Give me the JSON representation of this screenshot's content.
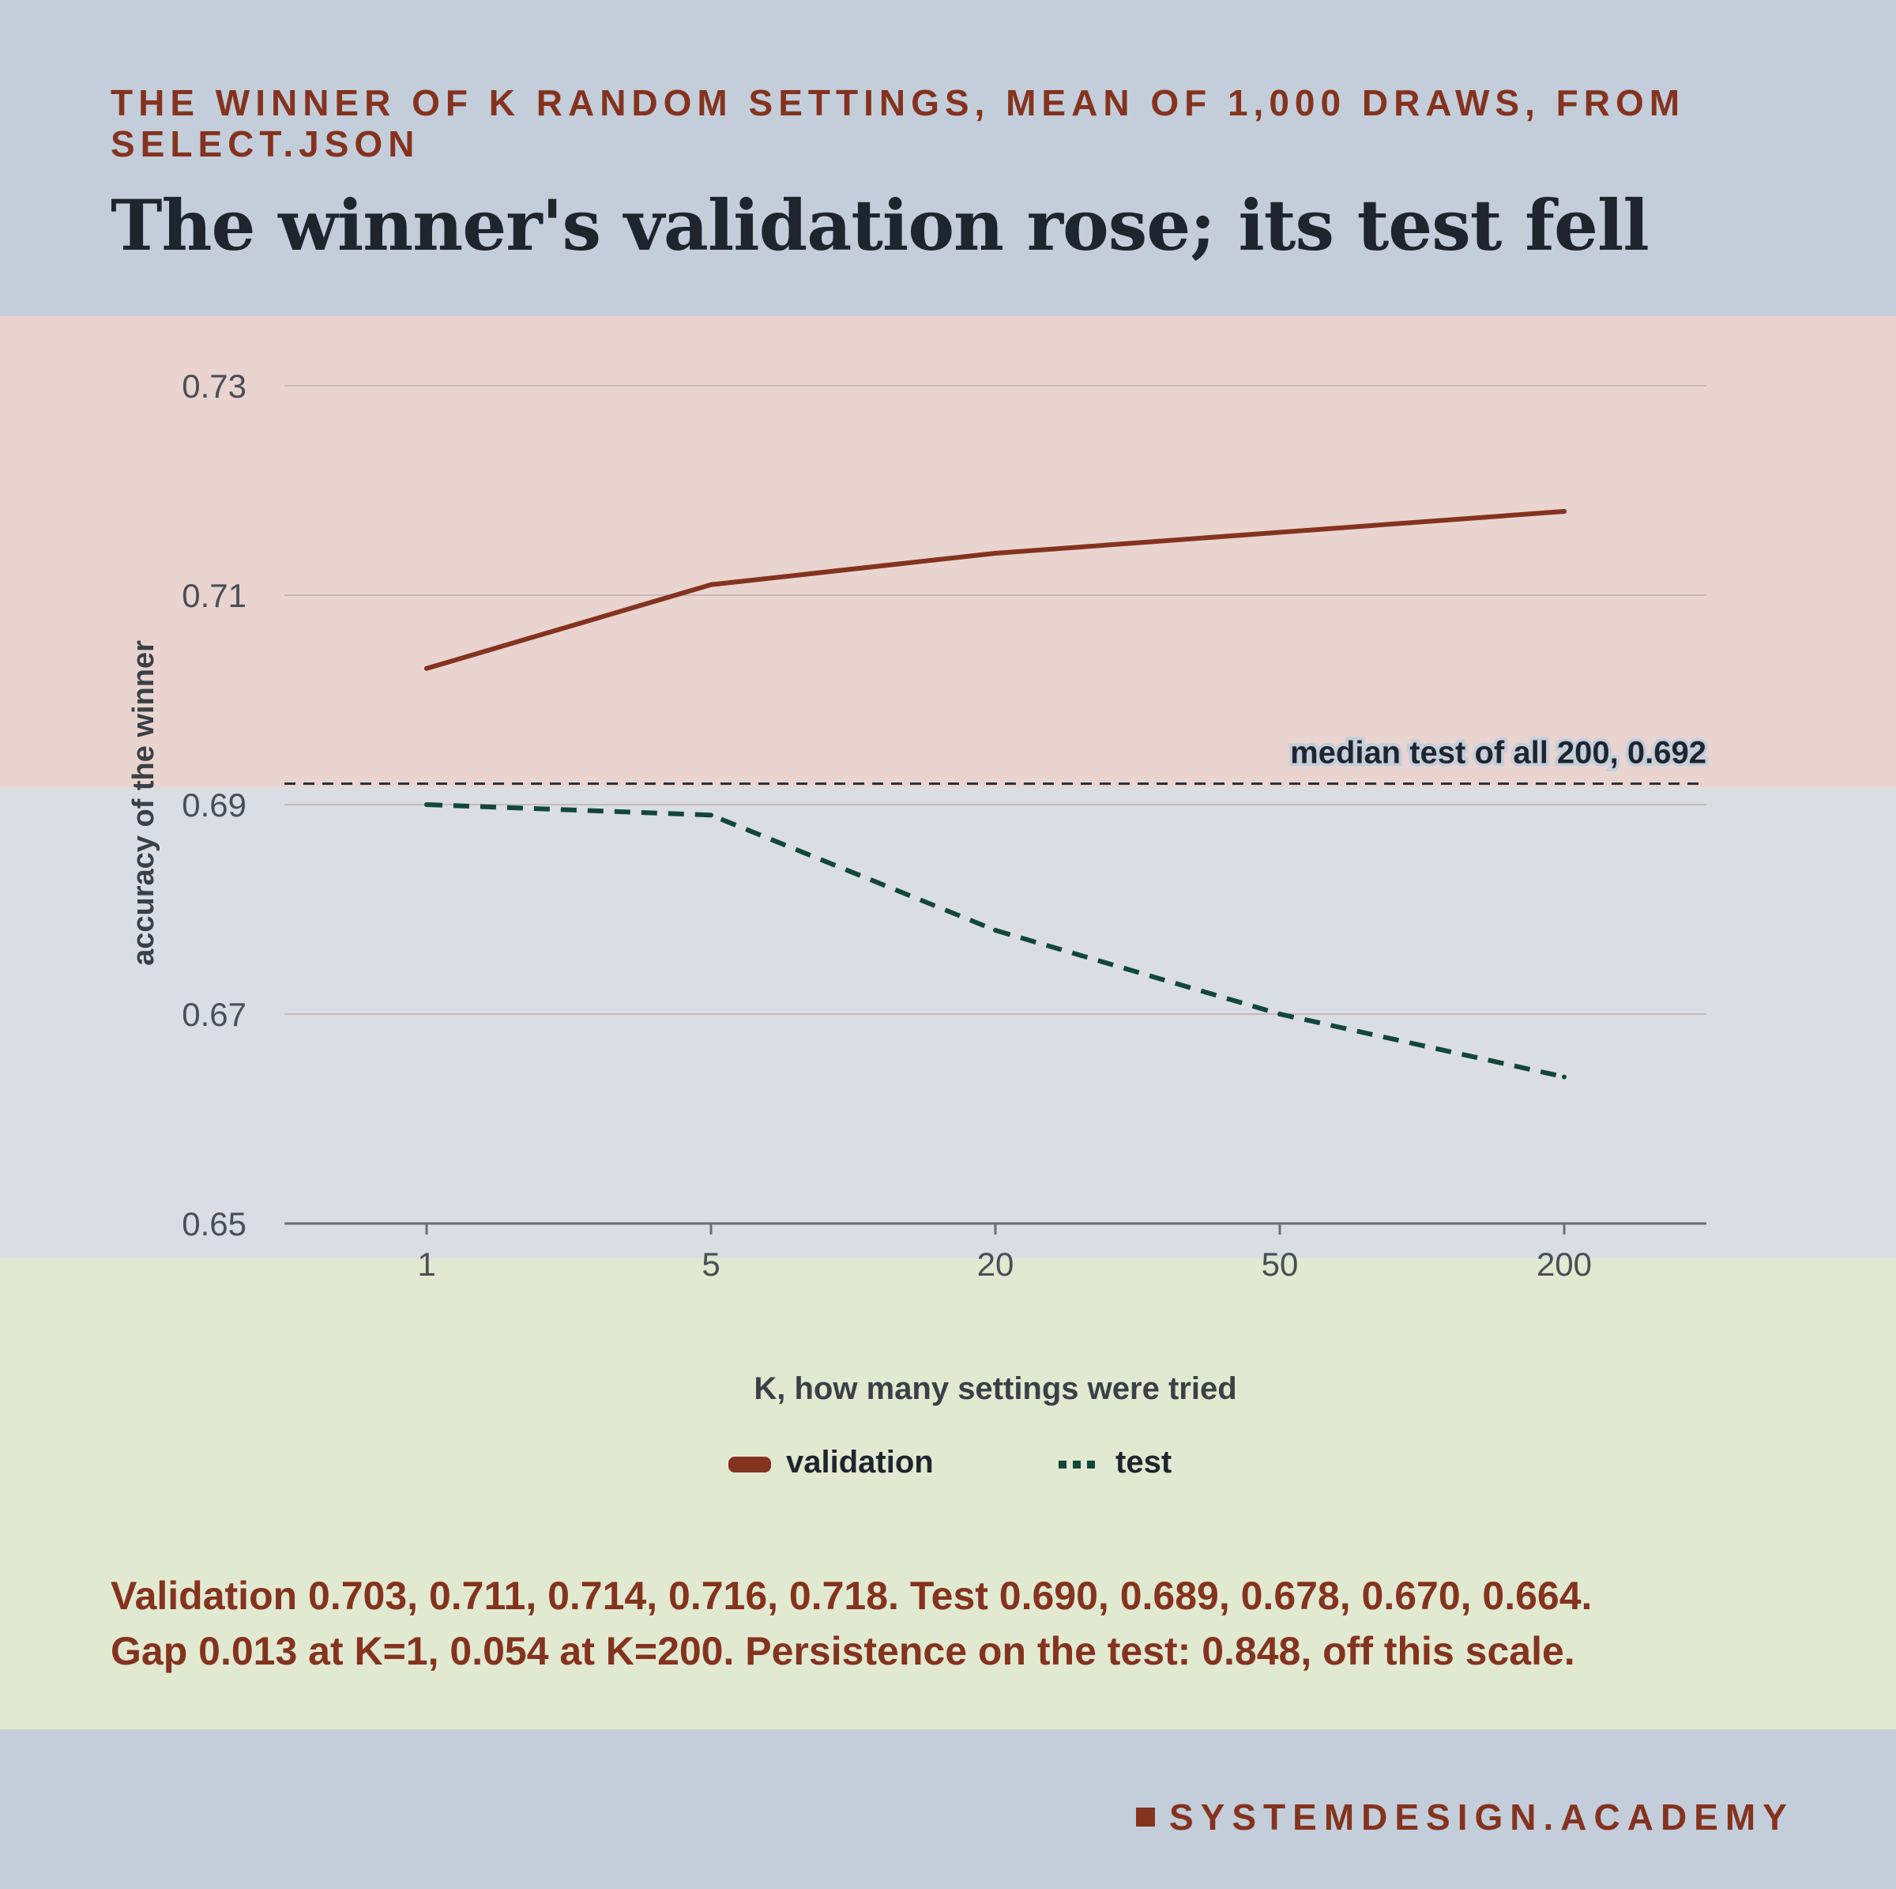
{
  "kicker": "THE WINNER OF K RANDOM SETTINGS, MEAN OF 1,000 DRAWS, FROM SELECT.JSON",
  "title": "The winner's validation rose; its test fell",
  "note_line1": "Validation 0.703, 0.711, 0.714, 0.716, 0.718. Test 0.690, 0.689, 0.678, 0.670, 0.664.",
  "note_line2": "Gap 0.013 at K=1, 0.054 at K=200. Persistence on the test: 0.848, off this scale.",
  "brand": "SYSTEMDESIGN.ACADEMY",
  "colors": {
    "validation": "#84331f",
    "test": "#12473b",
    "reference": "#2a2f36",
    "accent": "#84331f"
  },
  "chart_data": {
    "type": "line",
    "title": "The winner's validation rose; its test fell",
    "subtitle": "THE WINNER OF K RANDOM SETTINGS, MEAN OF 1,000 DRAWS, FROM SELECT.JSON",
    "xlabel": "K, how many settings were tried",
    "ylabel": "accuracy of the winner",
    "categories": [
      "1",
      "5",
      "20",
      "50",
      "200"
    ],
    "y_ticks": [
      "0.73",
      "0.71",
      "0.69",
      "0.67",
      "0.65"
    ],
    "ylim": [
      0.65,
      0.73
    ],
    "grid": true,
    "legend_position": "bottom",
    "series": [
      {
        "name": "validation",
        "values": [
          0.703,
          0.711,
          0.714,
          0.716,
          0.718
        ],
        "style": "solid"
      },
      {
        "name": "test",
        "values": [
          0.69,
          0.689,
          0.678,
          0.67,
          0.664
        ],
        "style": "dashed"
      }
    ],
    "reference_line": {
      "value": 0.692,
      "label": "median test of all 200, 0.692"
    }
  }
}
